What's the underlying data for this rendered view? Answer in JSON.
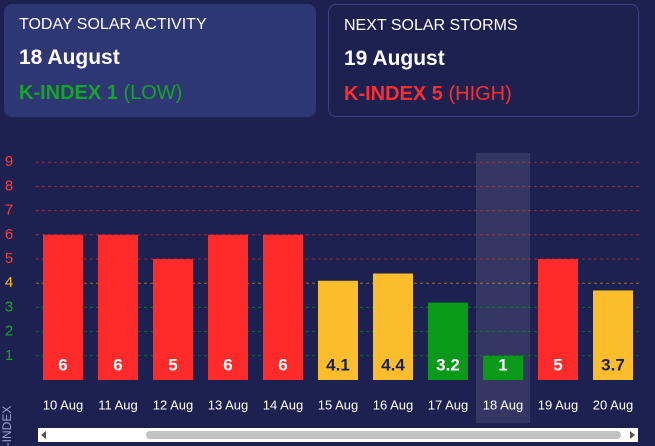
{
  "cards": [
    {
      "title": "TODAY SOLAR ACTIVITY",
      "date": "18 August",
      "index": "K-INDEX 1",
      "level": "(LOW)",
      "color": "#12a526"
    },
    {
      "title": "NEXT SOLAR STORMS",
      "date": "19 August",
      "index": "K-INDEX 5",
      "level": "(HIGH)",
      "color": "#ff2d2d"
    }
  ],
  "chart_data": {
    "type": "bar",
    "y_label": "K-INDEX",
    "categories": [
      "10 Aug",
      "11 Aug",
      "12 Aug",
      "13 Aug",
      "14 Aug",
      "15 Aug",
      "16 Aug",
      "17 Aug",
      "18 Aug",
      "19 Aug",
      "20 Aug"
    ],
    "values": [
      6,
      6,
      5,
      6,
      6,
      4.1,
      4.4,
      3.2,
      1,
      5,
      3.7
    ],
    "colors": [
      "#ff2a2a",
      "#ff2a2a",
      "#ff2a2a",
      "#ff2a2a",
      "#ff2a2a",
      "#fbbd2c",
      "#fbbd2c",
      "#0a9a1a",
      "#0a9a1a",
      "#ff2a2a",
      "#fbbd2c"
    ],
    "highlight_index": 8,
    "ylim": [
      0,
      10
    ],
    "yticks": [
      1,
      2,
      3,
      4,
      5,
      6,
      7,
      8,
      9
    ],
    "ytick_colors": [
      "#12a526",
      "#12a526",
      "#12a526",
      "#fbbd2c",
      "#ff3b3b",
      "#ff3b3b",
      "#ff3b3b",
      "#ff3b3b",
      "#ff3b3b"
    ],
    "grid": true
  }
}
